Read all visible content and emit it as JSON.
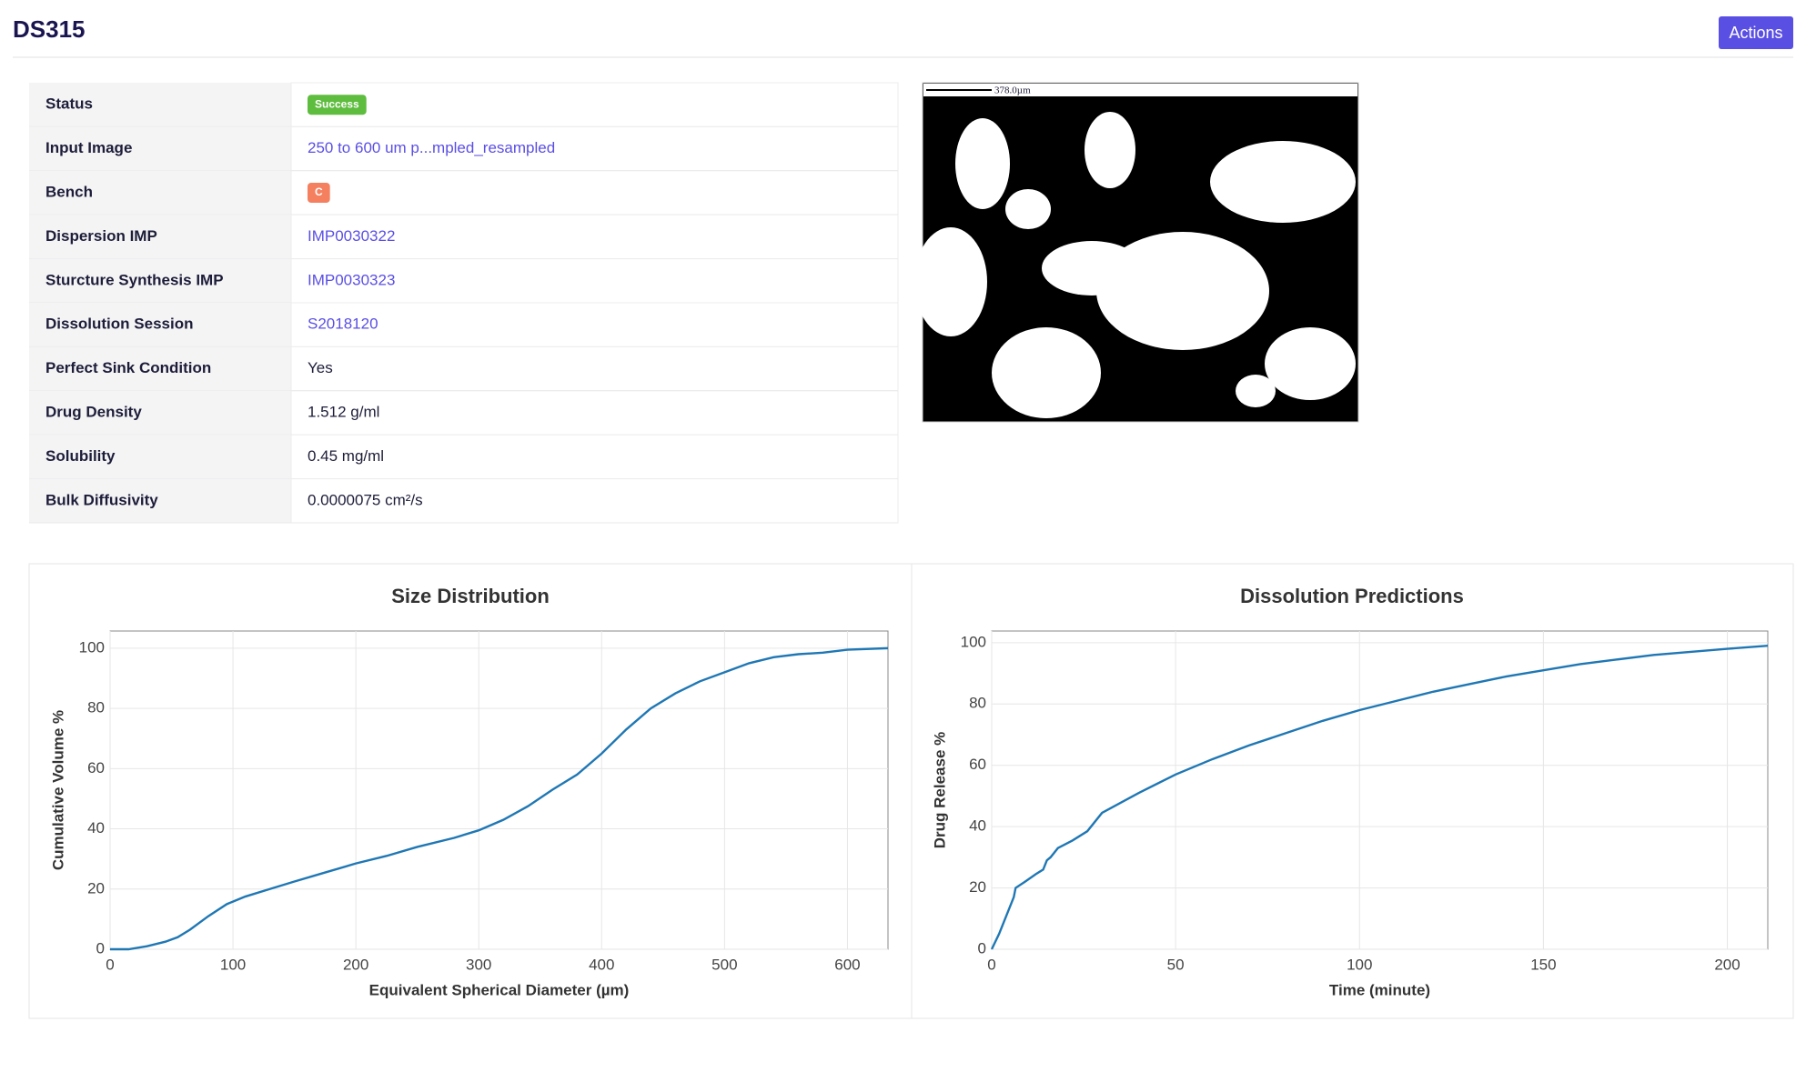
{
  "header": {
    "title": "DS315",
    "action": "Actions"
  },
  "details": {
    "rows": [
      [
        "Status",
        "Success"
      ],
      [
        "Input Image",
        "250 to 600 um p...mpled_resampled"
      ],
      [
        "Bench",
        "C"
      ],
      [
        "Dispersion IMP",
        "IMP0030322"
      ],
      [
        "Sturcture Synthesis IMP",
        "IMP0030323"
      ],
      [
        "Dissolution Session",
        "S2018120"
      ],
      [
        "Perfect Sink Condition",
        "Yes"
      ],
      [
        "Drug Density",
        "1.512 g/ml"
      ],
      [
        "Solubility",
        "0.45 mg/ml"
      ],
      [
        "Bulk Diffusivity",
        "0.0000075 cm²/s"
      ]
    ]
  },
  "image": {
    "scale_label": "378.0µm"
  },
  "charts": [
    {
      "type": "line",
      "title": "Size Distribution",
      "x_label": "Equivalent Spherical Diameter (µm)",
      "y_label": "Cumulative Volume %",
      "color": "#1f77b4",
      "grid": true,
      "x": [
        0,
        15,
        30,
        45,
        55,
        65,
        80,
        95,
        110,
        130,
        150,
        175,
        200,
        225,
        250,
        280,
        300,
        320,
        340,
        360,
        380,
        400,
        420,
        440,
        460,
        480,
        500,
        520,
        540,
        560,
        580,
        600,
        633
      ],
      "values": [
        0,
        0,
        1,
        2.5,
        4,
        6.5,
        11,
        15,
        17.5,
        20,
        22.5,
        25.5,
        28.5,
        31,
        34,
        37,
        39.5,
        43,
        47.5,
        53,
        58,
        65,
        73,
        80,
        85,
        89,
        92,
        95,
        97,
        98,
        98.5,
        99.5,
        100
      ],
      "xlim": [
        0,
        633
      ],
      "ylim": [
        0,
        105.7
      ],
      "xticks": [
        0,
        100,
        200,
        300,
        400,
        500,
        600
      ],
      "yticks": [
        0,
        20,
        40,
        60,
        80,
        100
      ]
    },
    {
      "type": "line",
      "title": "Dissolution Predictions",
      "x_label": "Time (minute)",
      "y_label": "Drug Release %",
      "color": "#1f77b4",
      "grid": true,
      "x": [
        0,
        2,
        4,
        6,
        6.5,
        9,
        12,
        14,
        15,
        16,
        18,
        22,
        26,
        30,
        40,
        50,
        60,
        70,
        80,
        90,
        100,
        110,
        120,
        130,
        140,
        150,
        160,
        170,
        180,
        190,
        200,
        211
      ],
      "values": [
        0,
        5,
        11,
        17,
        20,
        22,
        24.5,
        26,
        29,
        30,
        33,
        35.5,
        38.5,
        44.5,
        51,
        57,
        62,
        66.5,
        70.5,
        74.5,
        78,
        81,
        84,
        86.5,
        89,
        91,
        93,
        94.5,
        96,
        97,
        98,
        99
      ],
      "xlim": [
        0,
        211
      ],
      "ylim": [
        0,
        103.8
      ],
      "xticks": [
        0,
        50,
        100,
        150,
        200
      ],
      "yticks": [
        0,
        20,
        40,
        60,
        80,
        100
      ]
    }
  ]
}
